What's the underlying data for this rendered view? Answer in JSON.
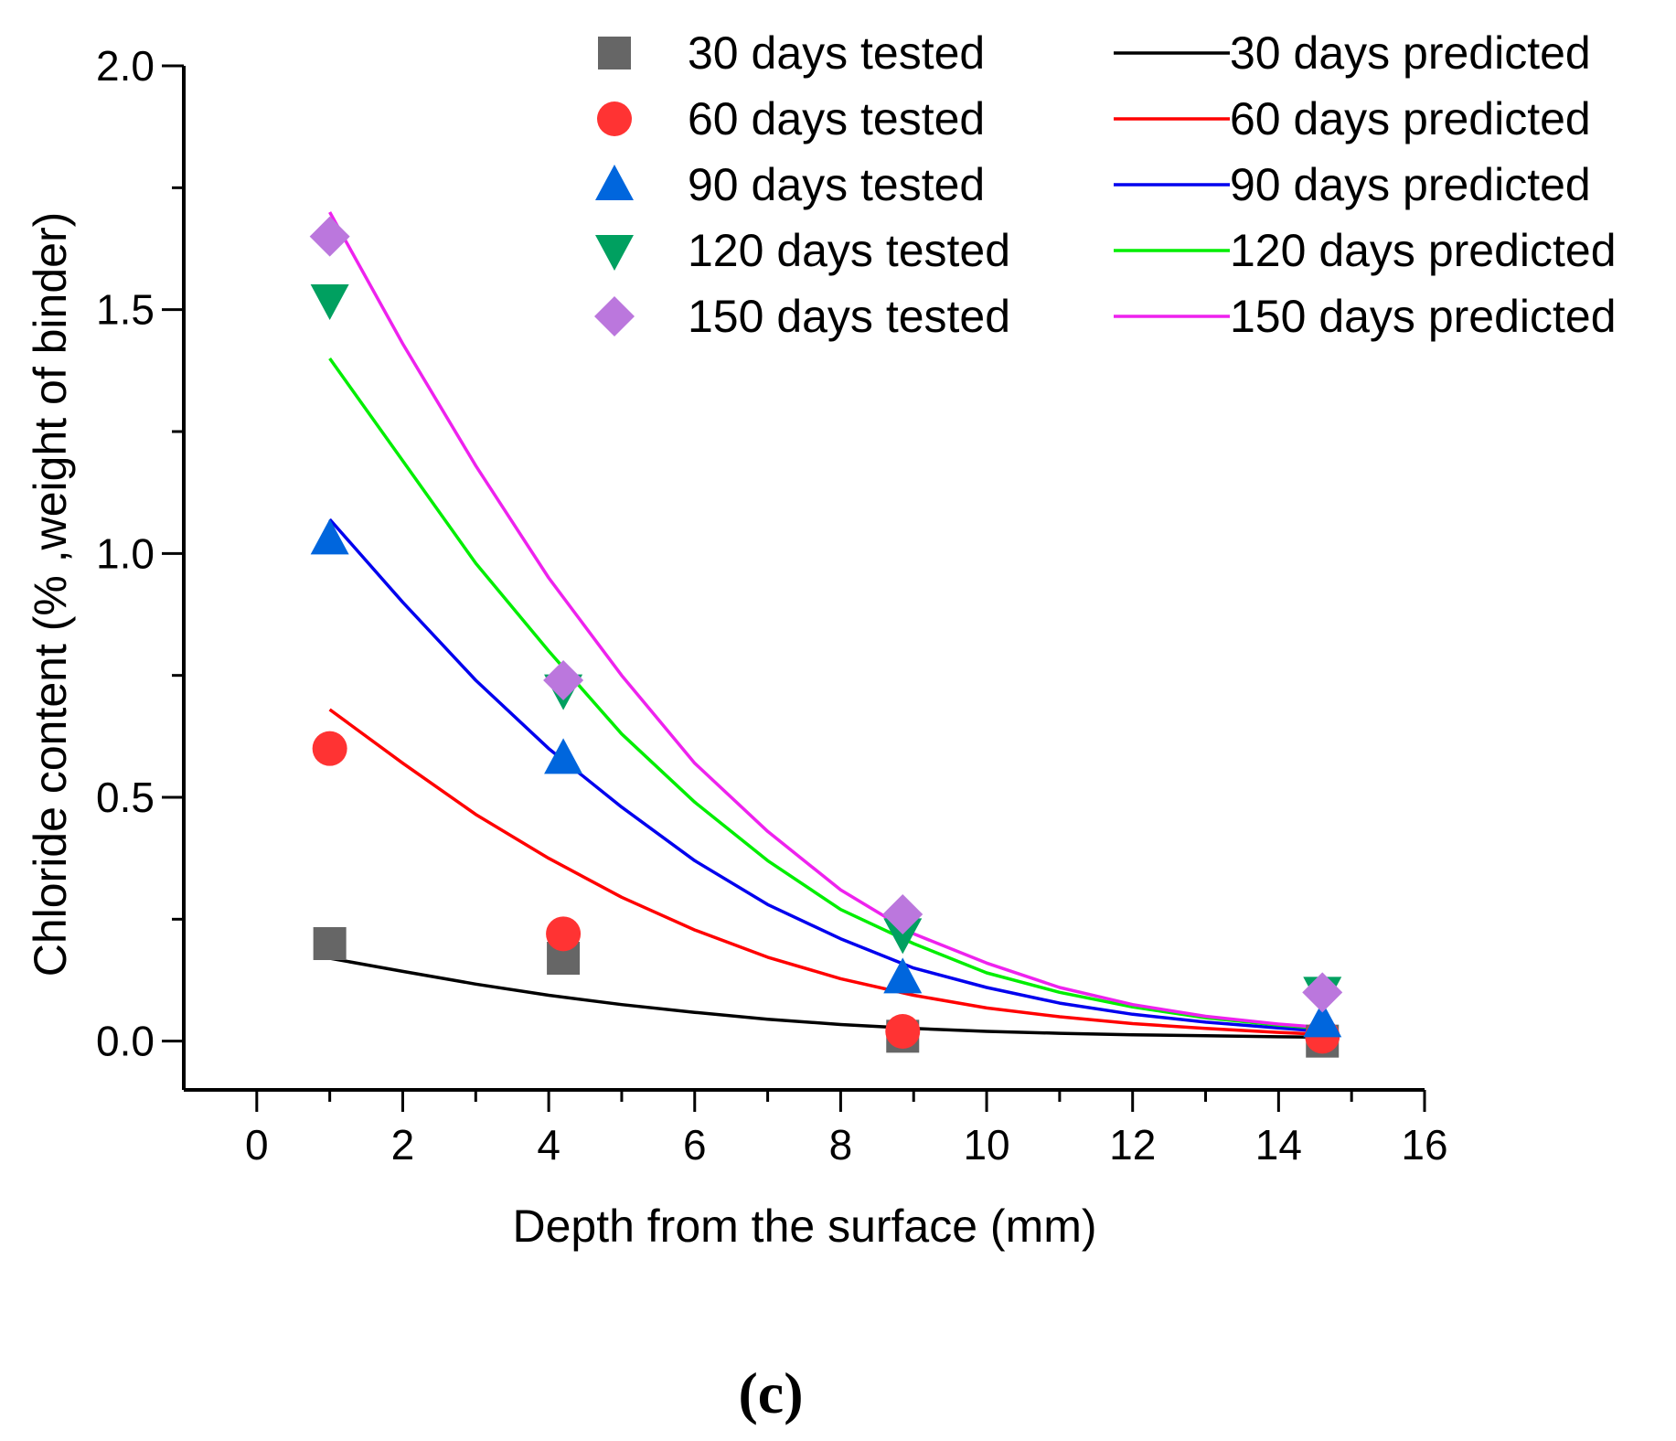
{
  "chart_data": {
    "type": "scatter",
    "title": "",
    "xlabel": "Depth from the surface (mm)",
    "ylabel": "Chloride content (% ,weight of binder)",
    "xlim": [
      -1,
      16
    ],
    "ylim": [
      -0.1,
      2.0
    ],
    "xticks": [
      0,
      2,
      4,
      6,
      8,
      10,
      12,
      14,
      16
    ],
    "yticks": [
      0.0,
      0.5,
      1.0,
      1.5,
      2.0
    ],
    "xtick_labels": [
      "0",
      "2",
      "4",
      "6",
      "8",
      "10",
      "12",
      "14",
      "16"
    ],
    "ytick_labels": [
      "0.0",
      "0.5",
      "1.0",
      "1.5",
      "2.0"
    ],
    "legend_position": "top-right",
    "panel_label": "(c)",
    "tested": [
      {
        "name": "30 days tested",
        "marker": "square",
        "color": "#666666",
        "x": [
          1.0,
          4.2,
          8.85,
          14.6
        ],
        "y": [
          0.2,
          0.17,
          0.01,
          0.0
        ]
      },
      {
        "name": "60 days tested",
        "marker": "circle",
        "color": "#ff3333",
        "x": [
          1.0,
          4.2,
          8.85,
          14.6
        ],
        "y": [
          0.6,
          0.22,
          0.02,
          0.01
        ]
      },
      {
        "name": "90 days tested",
        "marker": "triangle-up",
        "color": "#0066dd",
        "x": [
          1.0,
          4.2,
          8.85,
          14.6
        ],
        "y": [
          1.03,
          0.58,
          0.13,
          0.04
        ]
      },
      {
        "name": "120 days tested",
        "marker": "triangle-down",
        "color": "#00a060",
        "x": [
          1.0,
          4.2,
          8.85,
          14.6
        ],
        "y": [
          1.52,
          0.72,
          0.22,
          0.1
        ]
      },
      {
        "name": "150 days tested",
        "marker": "diamond",
        "color": "#bb77dd",
        "x": [
          1.0,
          4.2,
          8.85,
          14.6
        ],
        "y": [
          1.65,
          0.74,
          0.26,
          0.1
        ]
      }
    ],
    "predicted": [
      {
        "name": "30 days predicted",
        "color": "#000000",
        "x": [
          1,
          2,
          3,
          4,
          5,
          6,
          7,
          8,
          9,
          10,
          11,
          12,
          13,
          14,
          14.6
        ],
        "y": [
          0.17,
          0.143,
          0.117,
          0.094,
          0.075,
          0.059,
          0.045,
          0.034,
          0.026,
          0.02,
          0.016,
          0.013,
          0.011,
          0.009,
          0.008
        ]
      },
      {
        "name": "60 days predicted",
        "color": "#ff0000",
        "x": [
          1,
          2,
          3,
          4,
          5,
          6,
          7,
          8,
          9,
          10,
          11,
          12,
          13,
          14,
          14.6
        ],
        "y": [
          0.68,
          0.57,
          0.465,
          0.375,
          0.295,
          0.228,
          0.172,
          0.128,
          0.094,
          0.068,
          0.05,
          0.036,
          0.026,
          0.018,
          0.014
        ]
      },
      {
        "name": "90 days predicted",
        "color": "#0000ee",
        "x": [
          1,
          2,
          3,
          4,
          5,
          6,
          7,
          8,
          9,
          10,
          11,
          12,
          13,
          14,
          14.6
        ],
        "y": [
          1.07,
          0.9,
          0.74,
          0.6,
          0.48,
          0.37,
          0.28,
          0.21,
          0.15,
          0.11,
          0.078,
          0.055,
          0.039,
          0.027,
          0.02
        ]
      },
      {
        "name": "120 days predicted",
        "color": "#00ee00",
        "x": [
          1,
          2,
          3,
          4,
          5,
          6,
          7,
          8,
          9,
          10,
          11,
          12,
          13,
          14,
          14.6
        ],
        "y": [
          1.4,
          1.19,
          0.98,
          0.8,
          0.63,
          0.49,
          0.37,
          0.27,
          0.2,
          0.14,
          0.1,
          0.07,
          0.048,
          0.033,
          0.026
        ]
      },
      {
        "name": "150 days predicted",
        "color": "#ee22ee",
        "x": [
          1,
          2,
          3,
          4,
          5,
          6,
          7,
          8,
          9,
          10,
          11,
          12,
          13,
          14,
          14.6
        ],
        "y": [
          1.7,
          1.43,
          1.18,
          0.95,
          0.75,
          0.57,
          0.43,
          0.31,
          0.22,
          0.16,
          0.11,
          0.075,
          0.051,
          0.035,
          0.028
        ]
      }
    ]
  }
}
